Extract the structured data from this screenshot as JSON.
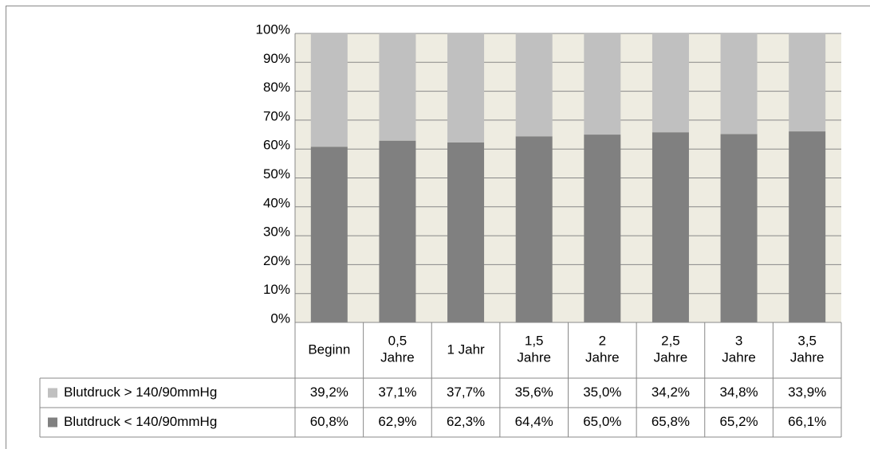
{
  "chart_data": {
    "type": "stacked_bar",
    "categories": [
      "Beginn",
      "0,5\nJahre",
      "1 Jahr",
      "1,5\nJahre",
      "2\nJahre",
      "2,5\nJahre",
      "3\nJahre",
      "3,5\nJahre"
    ],
    "series": [
      {
        "name": "Blutdruck < 140/90mmHg",
        "color": "#808080",
        "values": [
          60.8,
          62.9,
          62.3,
          64.4,
          65.0,
          65.8,
          65.2,
          66.1
        ],
        "value_labels": [
          "60,8%",
          "62,9%",
          "62,3%",
          "64,4%",
          "65,0%",
          "65,8%",
          "65,2%",
          "66,1%"
        ]
      },
      {
        "name": "Blutdruck > 140/90mmHg",
        "color": "#c0c0c0",
        "values": [
          39.2,
          37.1,
          37.7,
          35.6,
          35.0,
          34.2,
          34.8,
          33.9
        ],
        "value_labels": [
          "39,2%",
          "37,1%",
          "37,7%",
          "35,6%",
          "35,0%",
          "34,2%",
          "34,8%",
          "33,9%"
        ]
      }
    ],
    "ylim": [
      0,
      100
    ],
    "yticks": [
      {
        "value": 0,
        "label": "0%"
      },
      {
        "value": 10,
        "label": "10%"
      },
      {
        "value": 20,
        "label": "20%"
      },
      {
        "value": 30,
        "label": "30%"
      },
      {
        "value": 40,
        "label": "40%"
      },
      {
        "value": 50,
        "label": "50%"
      },
      {
        "value": 60,
        "label": "60%"
      },
      {
        "value": 70,
        "label": "70%"
      },
      {
        "value": 80,
        "label": "80%"
      },
      {
        "value": 90,
        "label": "90%"
      },
      {
        "value": 100,
        "label": "100%"
      }
    ],
    "grid": true,
    "plot_background": "#eeece1"
  }
}
